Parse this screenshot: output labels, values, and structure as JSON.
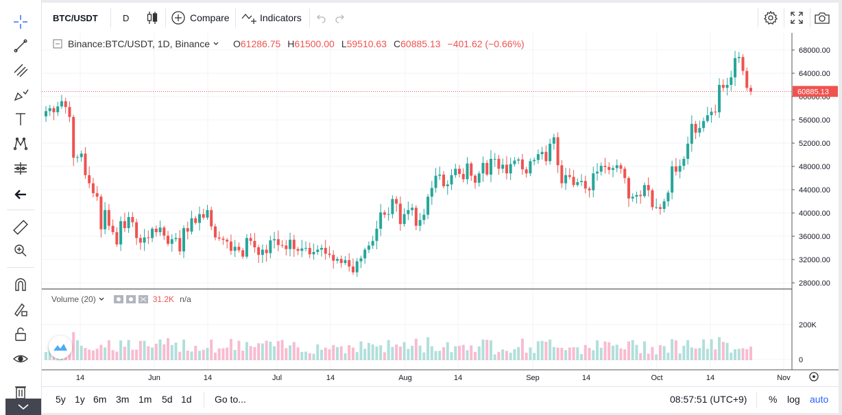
{
  "toolbar": {
    "symbol": "BTC/USDT",
    "interval": "D",
    "compare_label": "Compare",
    "indicators_label": "Indicators"
  },
  "legend": {
    "title": "Binance:BTC/USDT, 1D, Binance",
    "open_label": "O",
    "open": "61286.75",
    "high_label": "H",
    "high": "61500.00",
    "low_label": "L",
    "low": "59510.63",
    "close_label": "C",
    "close": "60885.13",
    "change": "−401.62 (−0.66%)"
  },
  "volume_legend": {
    "title": "Volume (20)",
    "value": "31.2K",
    "ma": "n/a"
  },
  "price_axis": {
    "labels": [
      "68000.00",
      "64000.00",
      "60000.00",
      "56000.00",
      "52000.00",
      "48000.00",
      "44000.00",
      "40000.00",
      "36000.00",
      "32000.00",
      "28000.00"
    ],
    "last_price": "60885.13"
  },
  "volume_axis": {
    "labels": [
      "200K",
      "0"
    ]
  },
  "time_axis": {
    "labels": [
      "14",
      "Jun",
      "14",
      "Jul",
      "14",
      "Aug",
      "14",
      "Sep",
      "14",
      "Oct",
      "14",
      "Nov"
    ]
  },
  "colors": {
    "up": "#26a69a",
    "down": "#ef5350",
    "up_vol": "#b2dfdb",
    "down_vol": "#f8bbd0",
    "accent": "#2962ff"
  },
  "bottom": {
    "ranges": [
      "5y",
      "1y",
      "6m",
      "3m",
      "1m",
      "5d",
      "1d"
    ],
    "goto": "Go to...",
    "clock": "08:57:51 (UTC+9)",
    "percent": "%",
    "log": "log",
    "auto": "auto"
  },
  "chart_data": {
    "type": "candlestick",
    "interval": "1D",
    "x_start": "2021-05-05",
    "x_end": "2021-10-20",
    "ylim": [
      26000,
      70000
    ],
    "ohlc_close_series": [
      57500,
      58000,
      57300,
      58300,
      59200,
      58200,
      56500,
      49500,
      49600,
      50200,
      46500,
      45100,
      43400,
      42800,
      37200,
      40500,
      37800,
      36700,
      34600,
      38600,
      37400,
      39300,
      38400,
      35700,
      34900,
      35800,
      35700,
      37300,
      36700,
      37500,
      36100,
      34700,
      35500,
      35700,
      33400,
      37400,
      36800,
      39100,
      38300,
      39800,
      39200,
      40500,
      37700,
      35800,
      35600,
      35400,
      35100,
      33500,
      34200,
      33600,
      32500,
      35700,
      35200,
      34100,
      32800,
      33700,
      33100,
      35300,
      35500,
      34500,
      34400,
      33800,
      35400,
      33800,
      33500,
      33900,
      34000,
      32900,
      33300,
      33700,
      34000,
      33000,
      32800,
      31800,
      32100,
      31400,
      31900,
      30800,
      29800,
      31700,
      32200,
      33700,
      34400,
      35200,
      37300,
      40100,
      39700,
      39800,
      42400,
      41600,
      38100,
      39800,
      40500,
      40900,
      37800,
      38800,
      39700,
      42800,
      44300,
      46400,
      46600,
      44600,
      44900,
      46500,
      47600,
      46700,
      45800,
      48500,
      46400,
      45200,
      46800,
      48600,
      46600,
      49300,
      49300,
      47600,
      48300,
      46800,
      48400,
      49000,
      49200,
      47500,
      46800,
      48900,
      49100,
      50100,
      50500,
      48900,
      51900,
      53000,
      48200,
      45100,
      46500,
      46200,
      44800,
      45300,
      45500,
      44200,
      43900,
      46800,
      47100,
      48100,
      47900,
      47400,
      47700,
      48200,
      47600,
      46000,
      42500,
      42800,
      43100,
      42900,
      44800,
      43900,
      41000,
      41000,
      40700,
      42000,
      43500,
      48000,
      47100,
      48100,
      49300,
      51900,
      55300,
      53800,
      54600,
      55800,
      56800,
      57400,
      57300,
      62000,
      61500,
      62000,
      63300,
      66600,
      66800,
      64400,
      61500,
      60885
    ]
  }
}
